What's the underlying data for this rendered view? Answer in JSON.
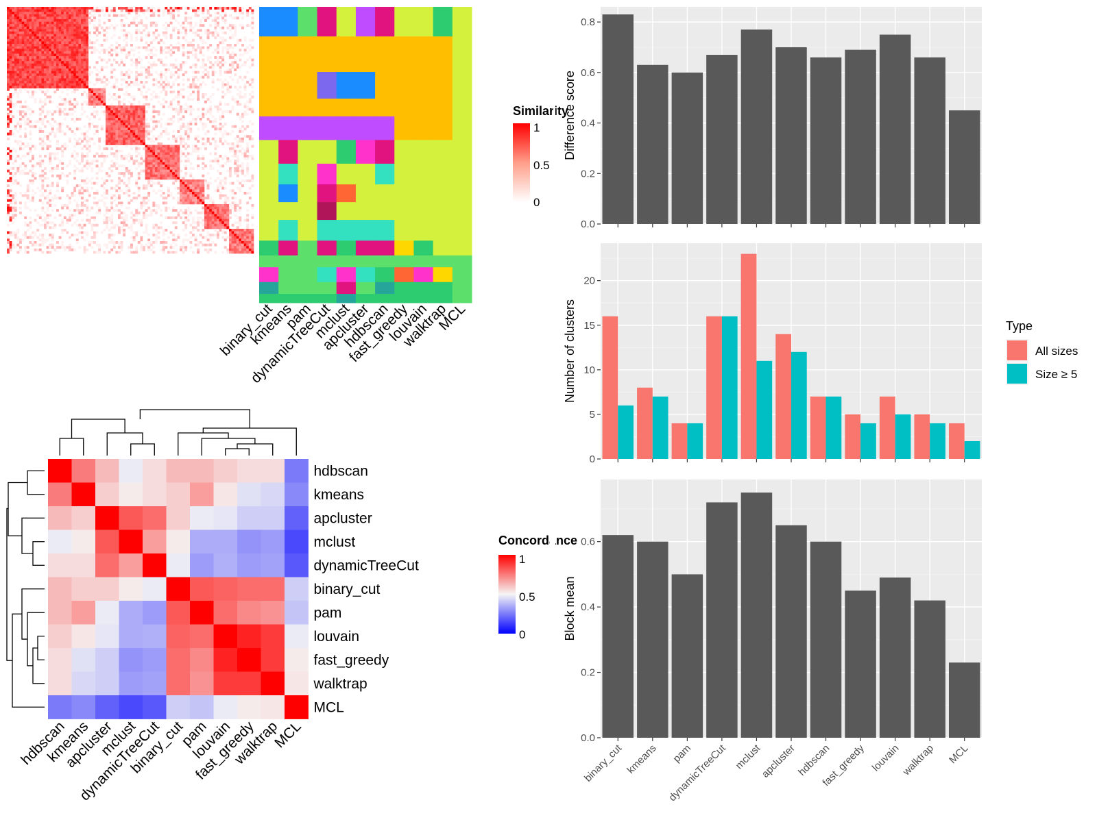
{
  "colors": {
    "panel_bg": "#ebebeb",
    "grid": "#ffffff",
    "bar": "#595959",
    "all_sizes": "#f8766d",
    "size_ge5": "#00bfc4",
    "sim_high": "#ff0000",
    "sim_low": "#ffffff",
    "conc_low": "#0000ff",
    "conc_mid": "#f5f5f5",
    "conc_high": "#ff0000"
  },
  "similarity_panel": {
    "legend_title": "Similarity",
    "legend_values": [
      "1",
      "0.5",
      "0"
    ],
    "methods": [
      "binary_cut",
      "kmeans",
      "pam",
      "dynamicTreeCut",
      "mclust",
      "apcluster",
      "hdbscan",
      "fast_greedy",
      "louvain",
      "walktrap",
      "MCL"
    ]
  },
  "concordance_panel": {
    "legend_title": "Concordance",
    "legend_values": [
      "1",
      "0.5",
      "0"
    ],
    "row_labels": [
      "hdbscan",
      "kmeans",
      "apcluster",
      "mclust",
      "dynamicTreeCut",
      "binary_cut",
      "pam",
      "louvain",
      "fast_greedy",
      "walktrap",
      "MCL"
    ],
    "col_labels": [
      "hdbscan",
      "kmeans",
      "apcluster",
      "mclust",
      "dynamicTreeCut",
      "binary_cut",
      "pam",
      "louvain",
      "fast_greedy",
      "walktrap",
      "MCL"
    ]
  },
  "chart_data": [
    {
      "type": "heatmap",
      "title": "",
      "legend_title": "Concordance",
      "rows": [
        "hdbscan",
        "kmeans",
        "apcluster",
        "mclust",
        "dynamicTreeCut",
        "binary_cut",
        "pam",
        "louvain",
        "fast_greedy",
        "walktrap",
        "MCL"
      ],
      "columns": [
        "hdbscan",
        "kmeans",
        "apcluster",
        "mclust",
        "dynamicTreeCut",
        "binary_cut",
        "pam",
        "louvain",
        "fast_greedy",
        "walktrap",
        "MCL"
      ],
      "values": [
        [
          1.0,
          0.75,
          0.62,
          0.48,
          0.55,
          0.62,
          0.62,
          0.58,
          0.55,
          0.55,
          0.25
        ],
        [
          0.75,
          1.0,
          0.58,
          0.52,
          0.55,
          0.58,
          0.68,
          0.53,
          0.46,
          0.44,
          0.28
        ],
        [
          0.62,
          0.58,
          1.0,
          0.82,
          0.78,
          0.58,
          0.48,
          0.47,
          0.42,
          0.42,
          0.2
        ],
        [
          0.48,
          0.52,
          0.82,
          1.0,
          0.68,
          0.52,
          0.35,
          0.35,
          0.3,
          0.32,
          0.15
        ],
        [
          0.55,
          0.55,
          0.78,
          0.68,
          1.0,
          0.48,
          0.32,
          0.36,
          0.32,
          0.33,
          0.18
        ],
        [
          0.62,
          0.58,
          0.58,
          0.52,
          0.48,
          1.0,
          0.82,
          0.8,
          0.78,
          0.78,
          0.42
        ],
        [
          0.62,
          0.68,
          0.48,
          0.35,
          0.32,
          0.82,
          1.0,
          0.78,
          0.72,
          0.7,
          0.4
        ],
        [
          0.58,
          0.53,
          0.47,
          0.35,
          0.36,
          0.8,
          0.78,
          1.0,
          0.93,
          0.88,
          0.48
        ],
        [
          0.55,
          0.46,
          0.42,
          0.3,
          0.32,
          0.78,
          0.72,
          0.93,
          1.0,
          0.88,
          0.52
        ],
        [
          0.55,
          0.44,
          0.42,
          0.32,
          0.33,
          0.78,
          0.7,
          0.88,
          0.88,
          1.0,
          0.53
        ],
        [
          0.25,
          0.28,
          0.2,
          0.15,
          0.18,
          0.42,
          0.4,
          0.48,
          0.52,
          0.53,
          1.0
        ]
      ],
      "scale": [
        0,
        1
      ]
    },
    {
      "type": "bar",
      "title": "",
      "categories": [
        "binary_cut",
        "kmeans",
        "pam",
        "dynamicTreeCut",
        "mclust",
        "apcluster",
        "hdbscan",
        "fast_greedy",
        "louvain",
        "walktrap",
        "MCL"
      ],
      "values": [
        0.83,
        0.63,
        0.6,
        0.67,
        0.77,
        0.7,
        0.66,
        0.69,
        0.75,
        0.66,
        0.45
      ],
      "xlabel": "",
      "ylabel": "Difference score",
      "ylim": [
        0,
        0.86
      ],
      "yticks": [
        0.0,
        0.2,
        0.4,
        0.6,
        0.8
      ],
      "ytick_labels": [
        "0.0",
        "0.2",
        "0.4",
        "0.6",
        "0.8"
      ],
      "grid": true
    },
    {
      "type": "bar",
      "title": "",
      "categories": [
        "binary_cut",
        "kmeans",
        "pam",
        "dynamicTreeCut",
        "mclust",
        "apcluster",
        "hdbscan",
        "fast_greedy",
        "louvain",
        "walktrap",
        "MCL"
      ],
      "series": [
        {
          "name": "All sizes",
          "values": [
            16,
            8,
            4,
            16,
            23,
            14,
            7,
            5,
            7,
            5,
            4
          ]
        },
        {
          "name": "Size ≥ 5",
          "values": [
            6,
            7,
            4,
            16,
            11,
            12,
            7,
            4,
            5,
            4,
            2
          ]
        }
      ],
      "xlabel": "",
      "ylabel": "Number of clusters",
      "ylim": [
        0,
        24.2
      ],
      "yticks": [
        0,
        5,
        10,
        15,
        20
      ],
      "ytick_labels": [
        "0",
        "5",
        "10",
        "15",
        "20"
      ],
      "legend_title": "Type",
      "legend_position": "right",
      "grid": true
    },
    {
      "type": "bar",
      "title": "",
      "categories": [
        "binary_cut",
        "kmeans",
        "pam",
        "dynamicTreeCut",
        "mclust",
        "apcluster",
        "hdbscan",
        "fast_greedy",
        "louvain",
        "walktrap",
        "MCL"
      ],
      "values": [
        0.62,
        0.6,
        0.5,
        0.72,
        0.75,
        0.65,
        0.6,
        0.45,
        0.49,
        0.42,
        0.23
      ],
      "xlabel": "",
      "ylabel": "Block mean",
      "ylim": [
        0,
        0.79
      ],
      "yticks": [
        0.0,
        0.2,
        0.4,
        0.6
      ],
      "ytick_labels": [
        "0.0",
        "0.2",
        "0.4",
        "0.6"
      ],
      "grid": true
    }
  ]
}
